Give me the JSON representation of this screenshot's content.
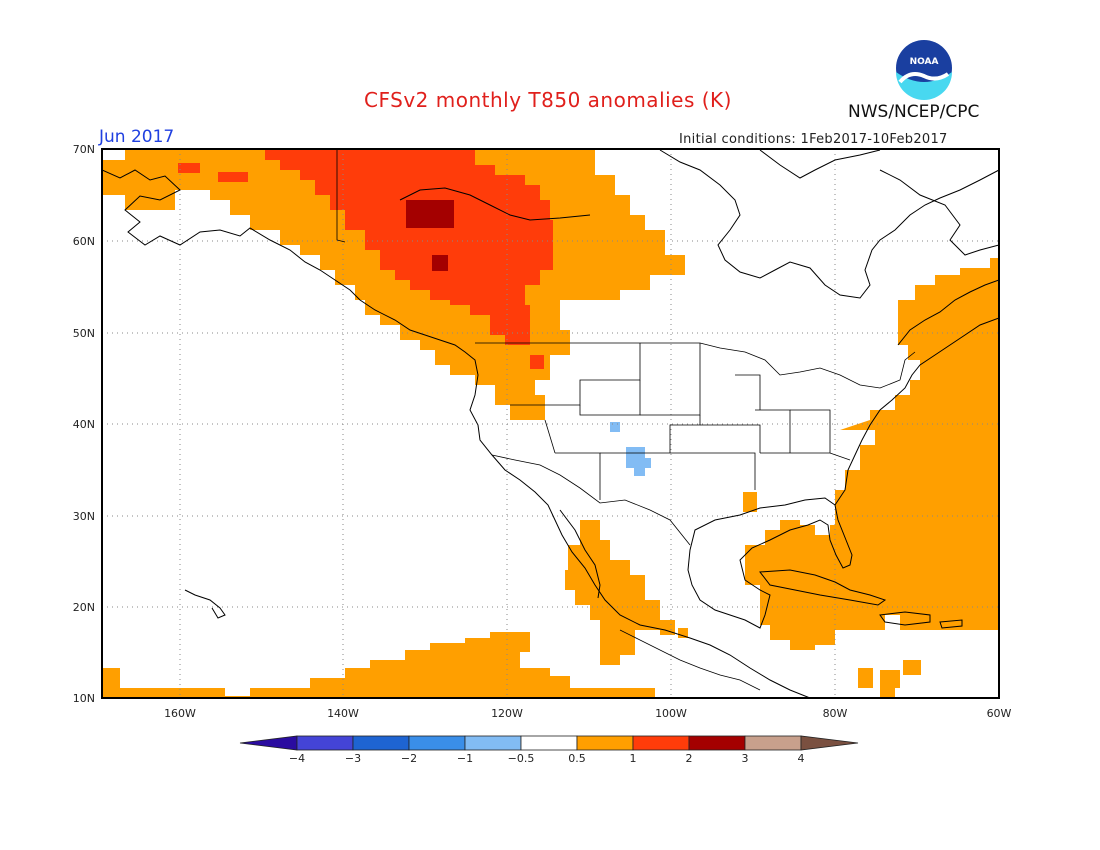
{
  "header": {
    "title": "CFSv2 monthly T850 anomalies (K)",
    "period": "Jun 2017",
    "agency": "NWS/NCEP/CPC",
    "initial_conditions": "Initial conditions: 1Feb2017-10Feb2017",
    "logo_text": "NOAA"
  },
  "map": {
    "lat_labels": [
      "70N",
      "60N",
      "50N",
      "40N",
      "30N",
      "20N",
      "10N"
    ],
    "lon_labels": [
      "160W",
      "140W",
      "120W",
      "100W",
      "80W",
      "60W"
    ],
    "gridlines": true
  },
  "legend": {
    "tick_labels": [
      "-4",
      "-3",
      "-2",
      "-1",
      "-0.5",
      "0.5",
      "1",
      "2",
      "3",
      "4"
    ],
    "colors": [
      "#2a0ca0",
      "#4444d6",
      "#1e64d2",
      "#3a8ee8",
      "#82bcf4",
      "#ffffff",
      "#ff9f00",
      "#ff3c0a",
      "#a40000",
      "#c8a08c",
      "#7a5040"
    ]
  },
  "anomaly_colors": {
    "light_blue": "#82bcf4",
    "orange": "#ff9f00",
    "red_orange": "#ff3c0a",
    "dark_red": "#a40000"
  }
}
